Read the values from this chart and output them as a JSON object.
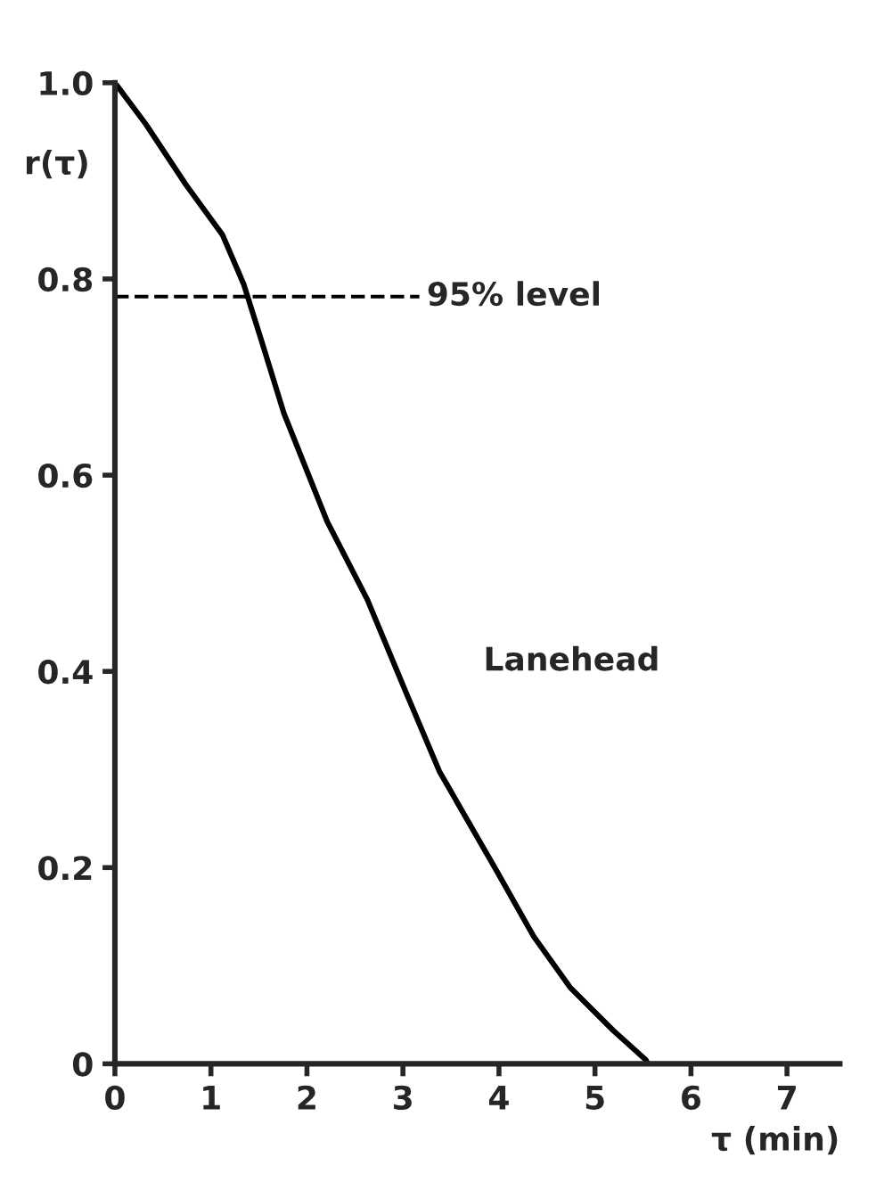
{
  "chart_data": {
    "type": "line",
    "xlabel": "τ (min)",
    "ylabel": "r(τ)",
    "x": [
      0,
      0.32,
      0.74,
      1.12,
      1.34,
      1.53,
      1.76,
      2.21,
      2.63,
      3.0,
      3.38,
      3.98,
      4.36,
      4.74,
      5.19,
      5.53,
      5.55
    ],
    "series": [
      {
        "color": "#000000",
        "values": [
          1.0,
          0.958,
          0.896,
          0.845,
          0.795,
          0.736,
          0.663,
          0.553,
          0.473,
          0.386,
          0.298,
          0.196,
          0.13,
          0.078,
          0.034,
          0.004,
          0.0
        ]
      }
    ],
    "xlim": [
      0,
      7.55
    ],
    "ylim": [
      0,
      1.0
    ],
    "xticks": [
      0,
      1,
      2,
      3,
      4,
      5,
      6,
      7
    ],
    "yticks": [
      {
        "value": 0,
        "label": "0"
      },
      0.2,
      0.4,
      0.6,
      0.8,
      {
        "value": 1.0,
        "label": "1.0"
      }
    ],
    "ref_lines": [
      {
        "axis": "y",
        "value": 0.782,
        "label": "95% level",
        "line_style": "dashed",
        "color": "#000000"
      }
    ],
    "annotations": [
      "Lanehead"
    ],
    "grid": false,
    "legend": false,
    "marker": "none",
    "line_style": "solid"
  }
}
